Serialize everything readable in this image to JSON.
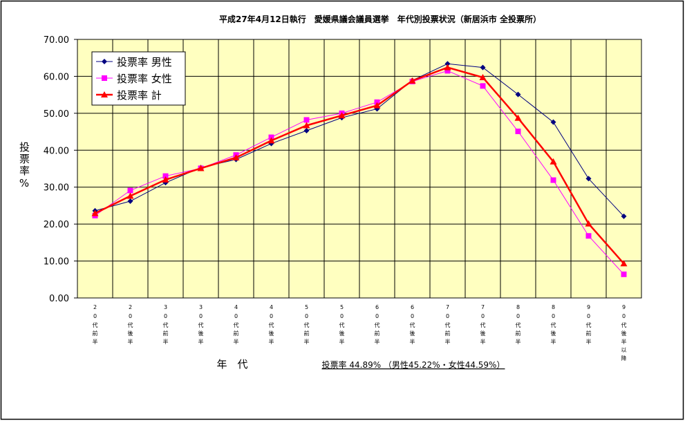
{
  "chart_data": {
    "type": "line",
    "title": "平成27年4月12日執行　愛媛県議会議員選挙　年代別投票状況（新居浜市 全投票所）",
    "y_label": "投票率%",
    "x_label": "年　代",
    "annotation": "投票率 44.89% （男性45.22%・女性44.59%）",
    "categories": [
      "20代前半",
      "20代後半",
      "30代前半",
      "30代後半",
      "40代前半",
      "40代後半",
      "50代前半",
      "50代後半",
      "60代前半",
      "60代後半",
      "70代前半",
      "70代後半",
      "80代前半",
      "80代後半",
      "90代前半",
      "90代後半以降"
    ],
    "series": [
      {
        "name": "投票率 男性",
        "color": "#000080",
        "marker": "diamond",
        "values": [
          23.6,
          26.2,
          31.2,
          35.3,
          37.5,
          41.8,
          45.3,
          48.8,
          51.2,
          58.9,
          63.4,
          62.4,
          55.1,
          47.6,
          32.3,
          22.1
        ]
      },
      {
        "name": "投票率 女性",
        "color": "#ff00ff",
        "marker": "square",
        "values": [
          22.3,
          29.1,
          33.0,
          35.1,
          38.7,
          43.5,
          48.2,
          50.0,
          53.0,
          58.6,
          61.5,
          57.4,
          45.1,
          31.9,
          16.8,
          6.4
        ]
      },
      {
        "name": "投票率 計",
        "color": "#ff0000",
        "marker": "triangle",
        "values": [
          22.9,
          27.6,
          32.0,
          35.1,
          38.0,
          42.6,
          46.7,
          49.4,
          52.1,
          58.8,
          62.4,
          59.7,
          48.7,
          36.9,
          20.1,
          9.3
        ]
      }
    ],
    "ylim": [
      0,
      70
    ],
    "yticks": [
      {
        "value": 0,
        "label": "0.00"
      },
      {
        "value": 10,
        "label": "10.00"
      },
      {
        "value": 20,
        "label": "20.00"
      },
      {
        "value": 30,
        "label": "30.00"
      },
      {
        "value": 40,
        "label": "40.00"
      },
      {
        "value": 50,
        "label": "50.00"
      },
      {
        "value": 60,
        "label": "60.00"
      },
      {
        "value": 70,
        "label": "70.00"
      }
    ],
    "grid": true,
    "background": "#ffffc0",
    "legend": "upper left"
  }
}
